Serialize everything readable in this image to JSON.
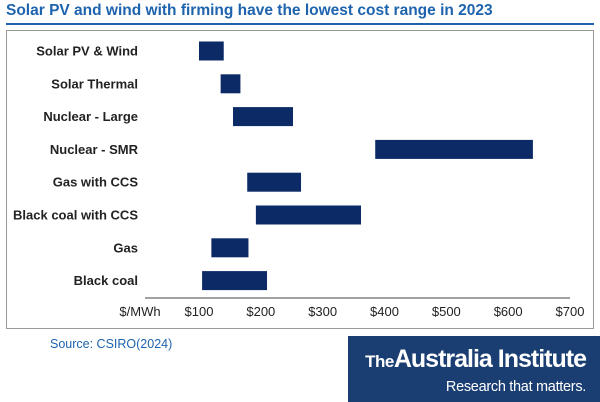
{
  "chart_data": {
    "type": "bar",
    "orientation": "horizontal-range",
    "title": "Solar PV and wind with firming have the lowest cost range in 2023",
    "xlabel": "$/MWh",
    "xlim": [
      0,
      700
    ],
    "xticks": [
      100,
      200,
      300,
      400,
      500,
      600,
      700
    ],
    "xtick_labels": [
      "$100",
      "$200",
      "$300",
      "$400",
      "$500",
      "$600",
      "$700"
    ],
    "categories": [
      "Solar PV & Wind",
      "Solar Thermal",
      "Nuclear - Large",
      "Nuclear - SMR",
      "Gas with CCS",
      "Black coal with CCS",
      "Gas",
      "Black coal"
    ],
    "ranges": [
      [
        100,
        140
      ],
      [
        135,
        167
      ],
      [
        155,
        252
      ],
      [
        385,
        640
      ],
      [
        178,
        265
      ],
      [
        192,
        362
      ],
      [
        120,
        180
      ],
      [
        105,
        210
      ]
    ],
    "bar_color": "#0b2a66",
    "grid": false,
    "legend": "none"
  },
  "source": "Source: CSIRO(2024)",
  "brand": {
    "name_the": "The",
    "name_rest": "Australia Institute",
    "tagline": "Research that matters."
  }
}
